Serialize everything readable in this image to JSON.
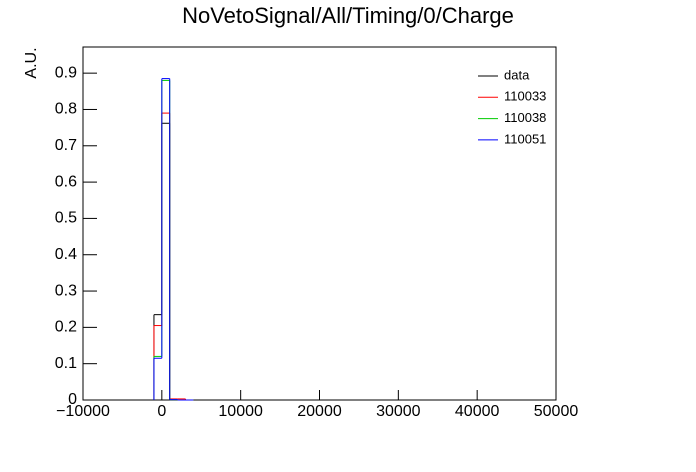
{
  "chart_data": {
    "type": "histogram",
    "title": "NoVetoSignal/All/Timing/0/Charge",
    "y_label": "A.U.",
    "bins": [
      -1000,
      0,
      1000,
      2000,
      3000,
      4000
    ],
    "series": [
      {
        "name": "data",
        "color": "#000000",
        "values": [
          0.235,
          0.762,
          0,
          0,
          0
        ]
      },
      {
        "name": "110033",
        "color": "#ff0000",
        "values": [
          0.205,
          0.79,
          0.003,
          0.003,
          0
        ]
      },
      {
        "name": "110038",
        "color": "#00cc00",
        "values": [
          0.12,
          0.88,
          0.001,
          0,
          0
        ]
      },
      {
        "name": "110051",
        "color": "#0000ff",
        "values": [
          0.115,
          0.885,
          0.001,
          0,
          0
        ]
      }
    ],
    "xlim": [
      -10000,
      50000
    ],
    "xticks": [
      {
        "value": -10000,
        "label": "−10000"
      },
      0,
      10000,
      20000,
      30000,
      40000,
      50000
    ],
    "ylim": [
      0,
      0.972
    ],
    "yticks": [
      0,
      0.1,
      0.2,
      0.3,
      0.4,
      0.5,
      0.6,
      0.7,
      0.8,
      0.9
    ],
    "legend": "top-right"
  }
}
